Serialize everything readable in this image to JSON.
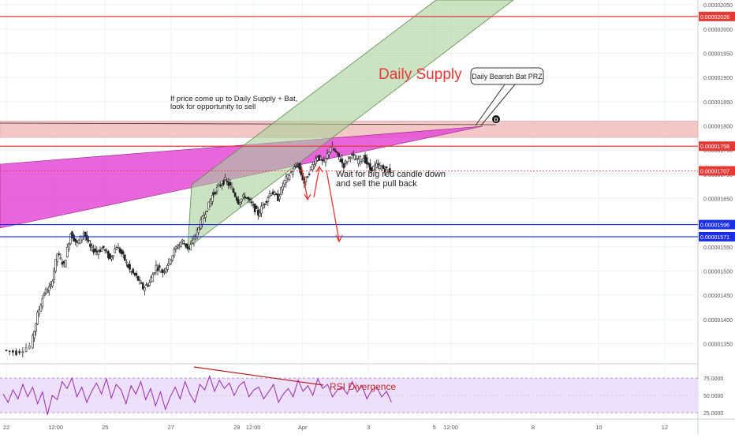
{
  "chart_data": {
    "type": "candlestick",
    "price_axis": {
      "ylim": [
        1.31e-05,
        2.06e-05
      ],
      "ticks": [
        "0.00002050",
        "0.00002000",
        "0.00001950",
        "0.00001900",
        "0.00001850",
        "0.00001800",
        "0.00001750",
        "0.00001700",
        "0.00001650",
        "0.00001600",
        "0.00001550",
        "0.00001500",
        "0.00001450",
        "0.00001400",
        "0.00001350"
      ],
      "tick_values": [
        2.05e-05,
        2e-05,
        1.95e-05,
        1.9e-05,
        1.85e-05,
        1.8e-05,
        1.75e-05,
        1.7e-05,
        1.65e-05,
        1.6e-05,
        1.55e-05,
        1.5e-05,
        1.45e-05,
        1.4e-05,
        1.35e-05
      ]
    },
    "time_axis": {
      "labels": [
        "22",
        "12:00",
        "25",
        "27",
        "29",
        "12:00",
        "Apr",
        "3",
        "5",
        "12:00",
        "8",
        "10",
        "12"
      ],
      "positions": [
        0.0,
        1.5,
        3.0,
        5.0,
        7.0,
        7.5,
        9.0,
        11.0,
        13.0,
        13.5,
        16.0,
        18.0,
        20.0
      ],
      "range": [
        0,
        21.2
      ]
    },
    "price_series": [
      [
        0.0,
        1.337e-05
      ],
      [
        0.4,
        1.332e-05
      ],
      [
        0.8,
        1.345e-05
      ],
      [
        1.0,
        1.41e-05
      ],
      [
        1.2,
        1.455e-05
      ],
      [
        1.4,
        1.468e-05
      ],
      [
        1.6,
        1.536e-05
      ],
      [
        1.8,
        1.512e-05
      ],
      [
        2.0,
        1.578e-05
      ],
      [
        2.2,
        1.556e-05
      ],
      [
        2.4,
        1.58e-05
      ],
      [
        2.6,
        1.548e-05
      ],
      [
        2.8,
        1.54e-05
      ],
      [
        3.0,
        1.548e-05
      ],
      [
        3.2,
        1.525e-05
      ],
      [
        3.4,
        1.552e-05
      ],
      [
        3.6,
        1.53e-05
      ],
      [
        3.8,
        1.502e-05
      ],
      [
        4.0,
        1.488e-05
      ],
      [
        4.2,
        1.465e-05
      ],
      [
        4.4,
        1.476e-05
      ],
      [
        4.6,
        1.51e-05
      ],
      [
        4.8,
        1.498e-05
      ],
      [
        5.0,
        1.52e-05
      ],
      [
        5.2,
        1.548e-05
      ],
      [
        5.4,
        1.562e-05
      ],
      [
        5.6,
        1.545e-05
      ],
      [
        5.8,
        1.575e-05
      ],
      [
        5.95,
        1.6e-05
      ],
      [
        6.15,
        1.63e-05
      ],
      [
        6.3,
        1.656e-05
      ],
      [
        6.5,
        1.675e-05
      ],
      [
        6.7,
        1.688e-05
      ],
      [
        6.9,
        1.67e-05
      ],
      [
        7.1,
        1.643e-05
      ],
      [
        7.3,
        1.655e-05
      ],
      [
        7.5,
        1.638e-05
      ],
      [
        7.7,
        1.618e-05
      ],
      [
        7.9,
        1.642e-05
      ],
      [
        8.1,
        1.665e-05
      ],
      [
        8.3,
        1.65e-05
      ],
      [
        8.5,
        1.685e-05
      ],
      [
        8.7,
        1.704e-05
      ],
      [
        8.9,
        1.72e-05
      ],
      [
        9.1,
        1.682e-05
      ],
      [
        9.3,
        1.712e-05
      ],
      [
        9.5,
        1.738e-05
      ],
      [
        9.7,
        1.722e-05
      ],
      [
        9.9,
        1.758e-05
      ],
      [
        10.1,
        1.74e-05
      ],
      [
        10.3,
        1.718e-05
      ],
      [
        10.5,
        1.74e-05
      ],
      [
        10.7,
        1.728e-05
      ],
      [
        10.9,
        1.735e-05
      ],
      [
        11.1,
        1.71e-05
      ],
      [
        11.3,
        1.718e-05
      ],
      [
        11.5,
        1.712e-05
      ],
      [
        11.7,
        1.707e-05
      ]
    ],
    "levels": [
      {
        "value": 2.026e-05,
        "label": "0.00002026",
        "color": "#e53935"
      },
      {
        "value": 1.758e-05,
        "label": "0.00001758",
        "color": "#e53935"
      },
      {
        "value": 1.707e-05,
        "label": "0.00001707",
        "color": "#e53935"
      },
      {
        "value": 1.596e-05,
        "label": "0.00001596",
        "color": "#1a2ee6"
      },
      {
        "value": 1.571e-05,
        "label": "0.00001571",
        "color": "#1a2ee6"
      }
    ],
    "rsi": {
      "ylim": [
        17,
        90
      ],
      "ticks": [
        "75.0000",
        "50.0000",
        "25.0000"
      ],
      "tick_values": [
        75,
        50,
        25
      ],
      "band": [
        75,
        25
      ],
      "values": [
        52,
        40,
        58,
        45,
        66,
        48,
        62,
        38,
        55,
        22,
        50,
        44,
        70,
        60,
        75,
        48,
        62,
        40,
        56,
        68,
        52,
        74,
        46,
        66,
        58,
        38,
        64,
        52,
        70,
        44,
        60,
        35,
        55,
        30,
        48,
        62,
        45,
        70,
        52,
        40,
        66,
        58,
        78,
        56,
        72,
        60,
        68,
        50,
        64,
        70,
        48,
        58,
        62,
        45,
        55,
        66,
        40,
        52,
        60,
        48,
        72,
        56,
        64,
        50,
        74,
        60,
        66,
        48,
        58,
        62,
        52,
        70,
        55,
        64,
        45,
        58,
        62,
        48,
        56,
        40
      ]
    },
    "colors": {
      "supply_zone": "#f4c7c7",
      "channel": "#a8d19a",
      "wedge": "#e44ad6",
      "rsi_bg": "#ece0fa",
      "bullish": "#2d2d2d",
      "bearish": "#2d2d2d",
      "annotation": "#e53935"
    }
  },
  "annotations": {
    "supply_title": "Daily Supply",
    "bat_label": "Daily Bearish Bat PRZ",
    "d_marker": "D",
    "note_line1": "If price come up to Daily Supply + Bat,",
    "note_line2": "look for opportunity to sell",
    "wait_line1": "Wait for big red candle down",
    "wait_line2": "and sell the pull back",
    "rsi_divergence": "RSI Divergence"
  }
}
